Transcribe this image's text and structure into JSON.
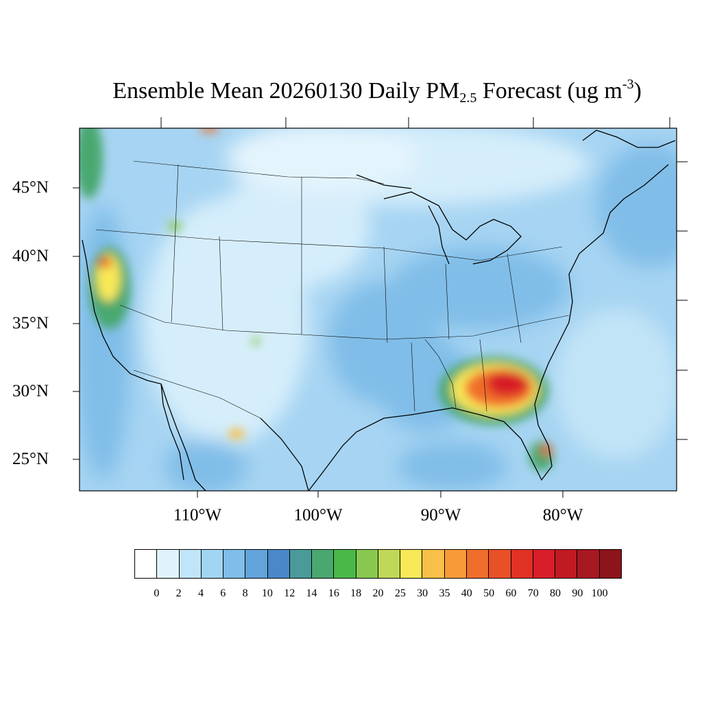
{
  "title": {
    "main": "Ensemble Mean 20260130 Daily PM",
    "sub": "2.5",
    "tail": " Forecast (ug m",
    "sup": "-3",
    "end": ")"
  },
  "map": {
    "lat_labels": [
      "45°N",
      "40°N",
      "35°N",
      "30°N",
      "25°N"
    ],
    "lon_labels": [
      "110°W",
      "100°W",
      "90°W",
      "80°W"
    ],
    "background_color": "#a6d4f2",
    "regions": [
      {
        "name": "Southeast US (Georgia / Alabama / N. Florida)",
        "level": "70-90"
      },
      {
        "name": "Northern California",
        "level": "30-70"
      },
      {
        "name": "South Florida",
        "level": "40-60"
      },
      {
        "name": "Northern Mexico",
        "level": "30-40"
      }
    ]
  },
  "colorbar": {
    "labels": [
      "0",
      "2",
      "4",
      "6",
      "8",
      "10",
      "12",
      "14",
      "16",
      "18",
      "20",
      "25",
      "30",
      "35",
      "40",
      "50",
      "60",
      "70",
      "80",
      "90",
      "100"
    ],
    "colors": [
      "#ffffff",
      "#e0f3fc",
      "#c0e5f8",
      "#a0d6f4",
      "#80bde8",
      "#62a3da",
      "#4a88c8",
      "#4a9a9a",
      "#48a870",
      "#4ab848",
      "#88c850",
      "#c0d858",
      "#f8e858",
      "#f8c048",
      "#f89a38",
      "#f06e2c",
      "#e85028",
      "#e03224",
      "#d81e28",
      "#c01a24",
      "#a81820",
      "#8c141a"
    ]
  }
}
